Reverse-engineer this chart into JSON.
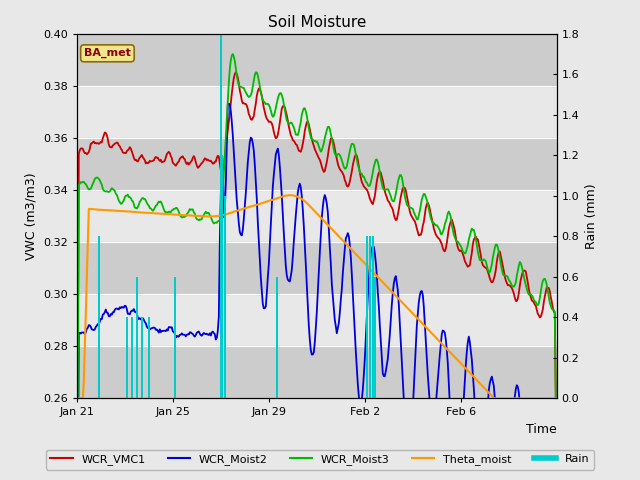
{
  "title": "Soil Moisture",
  "xlabel": "Time",
  "ylabel_left": "VWC (m3/m3)",
  "ylabel_right": "Rain (mm)",
  "ylim_left": [
    0.26,
    0.4
  ],
  "ylim_right": [
    0.0,
    1.8
  ],
  "bg_color": "#e8e8e8",
  "plot_bg_color_dark": "#cccccc",
  "plot_bg_color_light": "#e0e0e0",
  "annotation_box": "BA_met",
  "legend_entries": [
    "WCR_VMC1",
    "WCR_Moist2",
    "WCR_Moist3",
    "Theta_moist",
    "Rain"
  ],
  "legend_colors": [
    "#cc0000",
    "#0000dd",
    "#00bb00",
    "#ff9900",
    "#00cccc"
  ],
  "xtick_labels": [
    "Jan 21",
    "Jan 25",
    "Jan 29",
    "Feb 2",
    "Feb 6"
  ],
  "xtick_positions": [
    0,
    96,
    192,
    288,
    384
  ],
  "total_points": 480,
  "ytick_left": [
    0.26,
    0.28,
    0.3,
    0.32,
    0.34,
    0.36,
    0.38,
    0.4
  ],
  "ytick_right": [
    0.0,
    0.2,
    0.4,
    0.6,
    0.8,
    1.0,
    1.2,
    1.4,
    1.6,
    1.8
  ],
  "band_pairs": [
    [
      0.26,
      0.28
    ],
    [
      0.3,
      0.32
    ],
    [
      0.34,
      0.36
    ],
    [
      0.38,
      0.4
    ]
  ]
}
